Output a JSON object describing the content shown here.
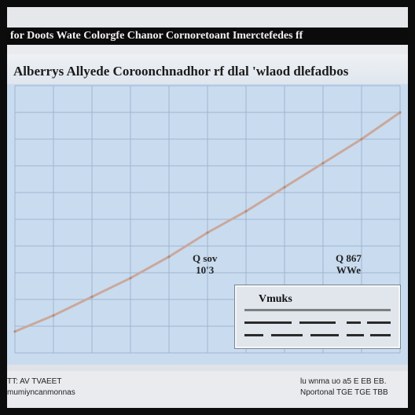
{
  "window": {
    "title": "for Doots Wate Colorgfe Chanor Cornoretoant Imerctefedes ff"
  },
  "panel": {
    "title": "Alberrys Allyede Coroonchnadhor rf dlal 'wlaod dlefadbos"
  },
  "chart_data": {
    "type": "line",
    "title": "Alberrys Allyede Coroonchnadhor rf dlal 'wlaod dlefadbos",
    "xlabel": "",
    "ylabel": "",
    "x": [
      0,
      1,
      2,
      3,
      4,
      5,
      6,
      7,
      8,
      9,
      10
    ],
    "series": [
      {
        "values": [
          8,
          14,
          21,
          28,
          36,
          45,
          53,
          62,
          71,
          80,
          90
        ]
      }
    ],
    "ylim": [
      0,
      100
    ],
    "grid": true,
    "legend_position": "bottom-right",
    "callouts": [
      {
        "line1": "Q sov",
        "line2": "10'3"
      },
      {
        "line1": "Q 867",
        "line2": "WWe"
      }
    ],
    "line_color": "#c9a99c"
  },
  "legend": {
    "title": "Vmuks"
  },
  "footer": {
    "left_line1": "TT: AV TVAEET",
    "left_line2": "mumiyncanmonnas",
    "right_line1": "lu wnma uo a5 E EB EB.",
    "right_line2": "Nportonal TGE TGE TBB"
  },
  "colors": {
    "plot_background": "#c9dbef",
    "grid": "#9fb5cf",
    "title_bar": "#0b0b0b"
  }
}
